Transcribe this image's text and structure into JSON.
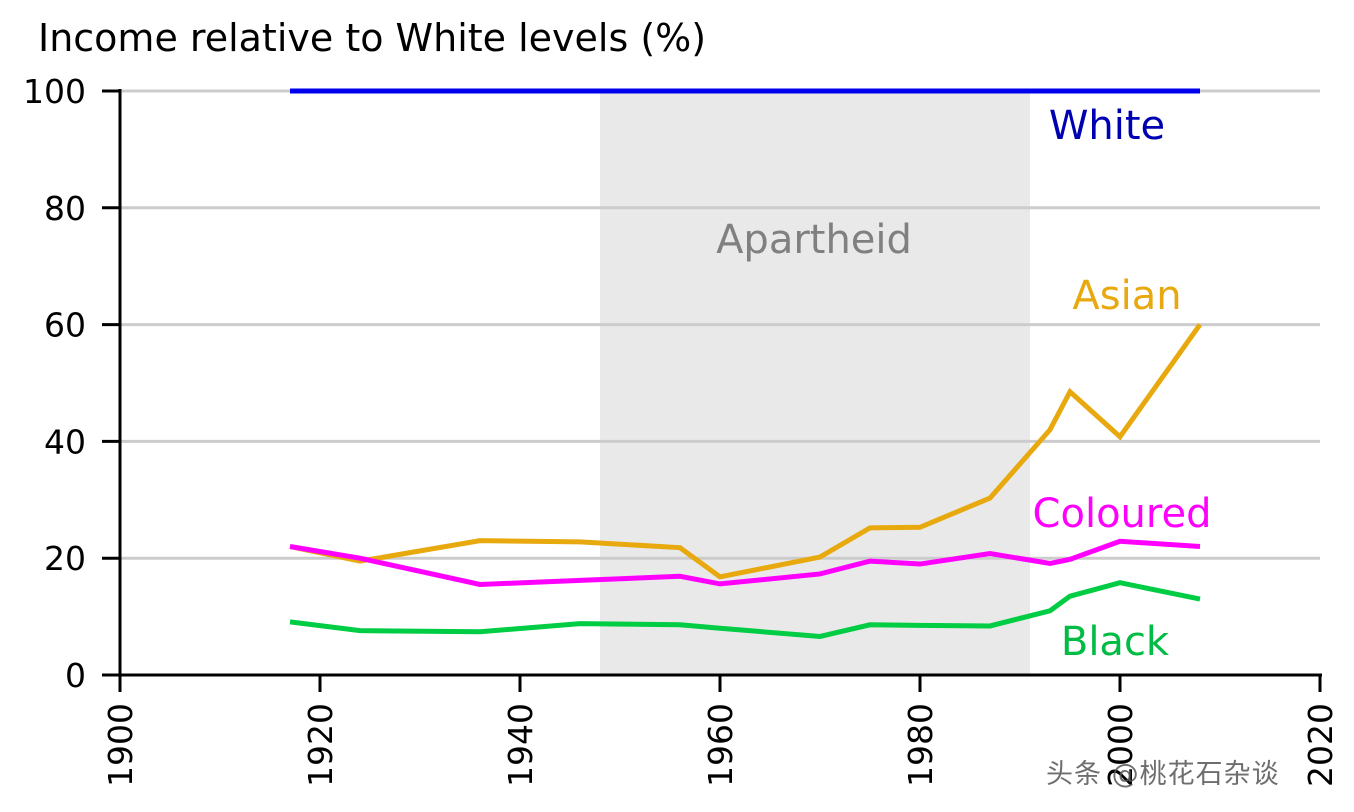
{
  "chart_data": {
    "type": "line",
    "title": "Income relative to White levels (%)",
    "xlabel": "",
    "ylabel": "",
    "xlim": [
      1900,
      2020
    ],
    "ylim": [
      0,
      100
    ],
    "x_ticks": [
      "1900",
      "1920",
      "1940",
      "1960",
      "1980",
      "2000",
      "2020"
    ],
    "y_ticks": [
      "0",
      "20",
      "40",
      "60",
      "80",
      "100"
    ],
    "grid": "horizontal",
    "shaded_region": {
      "label": "Apartheid",
      "x_start": 1948,
      "x_end": 1991,
      "color": "#e9e9e9",
      "label_color": "#808080"
    },
    "series": [
      {
        "name": "White",
        "color": "#0000ee",
        "label_color": "#0000b3",
        "x": [
          1917,
          2008
        ],
        "y": [
          100,
          100
        ]
      },
      {
        "name": "Asian",
        "color": "#e8a90e",
        "label_color": "#e8a90e",
        "x": [
          1917,
          1924,
          1936,
          1946,
          1956,
          1960,
          1970,
          1975,
          1980,
          1987,
          1993,
          1995,
          2000,
          2008
        ],
        "y": [
          22,
          19.5,
          23,
          22.8,
          21.8,
          16.8,
          20.2,
          25.2,
          25.3,
          30.3,
          42,
          48.5,
          40.8,
          60
        ]
      },
      {
        "name": "Coloured",
        "color": "#ff00ff",
        "label_color": "#ff00ff",
        "x": [
          1917,
          1924,
          1936,
          1946,
          1956,
          1960,
          1970,
          1975,
          1980,
          1987,
          1993,
          1995,
          2000,
          2008
        ],
        "y": [
          22,
          20,
          15.5,
          16.2,
          16.9,
          15.6,
          17.3,
          19.5,
          19,
          20.8,
          19.1,
          19.8,
          22.9,
          22
        ]
      },
      {
        "name": "Black",
        "color": "#00cc44",
        "label_color": "#00bb44",
        "x": [
          1917,
          1924,
          1936,
          1946,
          1956,
          1960,
          1970,
          1975,
          1980,
          1987,
          1993,
          1995,
          2000,
          2008
        ],
        "y": [
          9.1,
          7.6,
          7.4,
          8.8,
          8.6,
          8,
          6.6,
          8.6,
          8.5,
          8.4,
          11,
          13.5,
          15.8,
          13
        ]
      }
    ]
  },
  "watermark": "头条 @桃花石杂谈"
}
